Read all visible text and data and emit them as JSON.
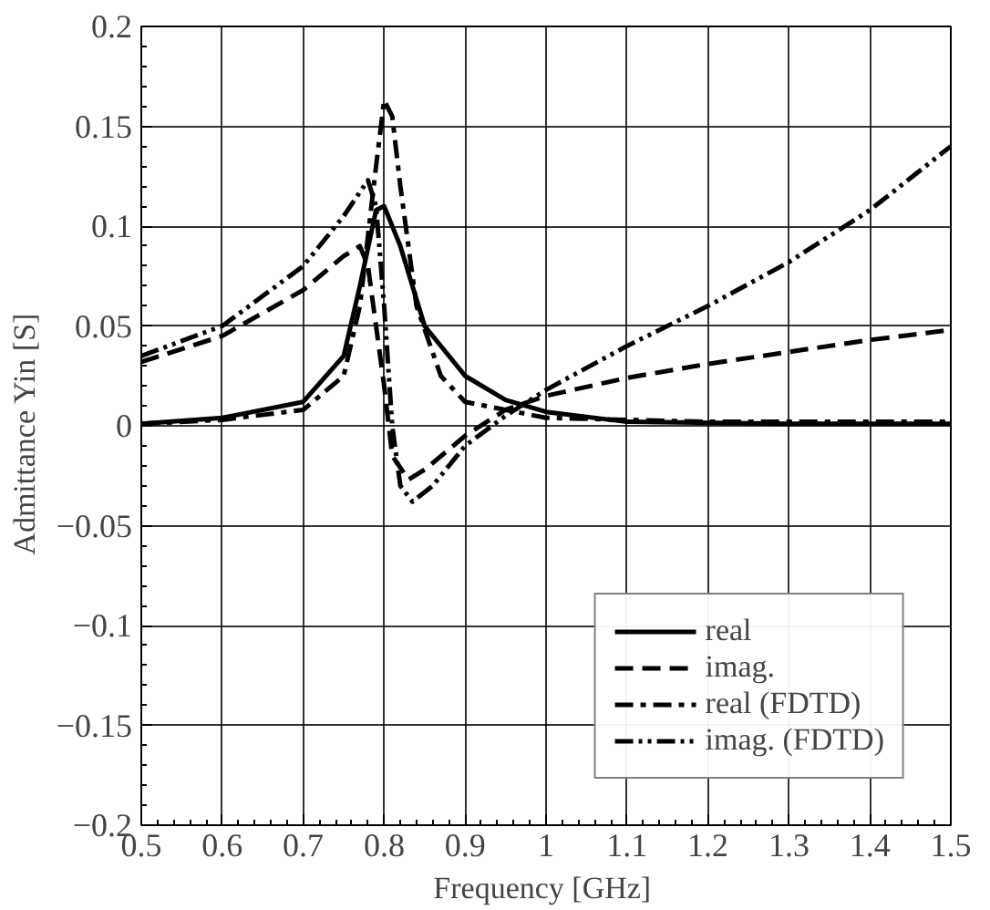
{
  "chart_data": {
    "type": "line",
    "xlabel": "Frequency  [GHz]",
    "ylabel": "Admittance  Yin  [S]",
    "xlim": [
      0.5,
      1.5
    ],
    "xticks": [
      0.5,
      0.6,
      0.7,
      0.8,
      0.9,
      1,
      1.1,
      1.2,
      1.3,
      1.4,
      1.5
    ],
    "ylim": [
      -0.2,
      0.2
    ],
    "yticks": [
      -0.2,
      -0.15,
      -0.1,
      -0.05,
      0,
      0.05,
      0.1,
      0.15,
      0.2
    ],
    "grid": true,
    "legend": "bottom right",
    "series": [
      {
        "name": "real",
        "color": "#000000",
        "line_style": "solid",
        "x": [
          0.5,
          0.6,
          0.7,
          0.75,
          0.77,
          0.79,
          0.8,
          0.82,
          0.85,
          0.9,
          0.95,
          1.0,
          1.1,
          1.3,
          1.5
        ],
        "values": [
          0.001,
          0.004,
          0.012,
          0.035,
          0.07,
          0.108,
          0.11,
          0.09,
          0.05,
          0.025,
          0.013,
          0.007,
          0.002,
          0.001,
          0.001
        ]
      },
      {
        "name": "imag.",
        "color": "#000000",
        "line_style": "dashed",
        "x": [
          0.5,
          0.6,
          0.7,
          0.75,
          0.77,
          0.78,
          0.8,
          0.81,
          0.83,
          0.85,
          0.9,
          0.95,
          1.0,
          1.1,
          1.2,
          1.3,
          1.4,
          1.5
        ],
        "values": [
          0.032,
          0.045,
          0.068,
          0.085,
          0.09,
          0.08,
          0.02,
          -0.015,
          -0.027,
          -0.022,
          -0.005,
          0.008,
          0.015,
          0.024,
          0.031,
          0.037,
          0.043,
          0.048
        ]
      },
      {
        "name": "real (FDTD)",
        "color": "#000000",
        "line_style": "dashdot",
        "x": [
          0.5,
          0.6,
          0.7,
          0.75,
          0.77,
          0.79,
          0.8,
          0.81,
          0.82,
          0.84,
          0.87,
          0.9,
          1.0,
          1.2,
          1.5
        ],
        "values": [
          0.001,
          0.003,
          0.008,
          0.025,
          0.06,
          0.13,
          0.163,
          0.155,
          0.12,
          0.06,
          0.025,
          0.012,
          0.004,
          0.002,
          0.002
        ]
      },
      {
        "name": "imag. (FDTD)",
        "color": "#000000",
        "line_style": "dashdotdot",
        "x": [
          0.5,
          0.6,
          0.7,
          0.75,
          0.78,
          0.79,
          0.8,
          0.81,
          0.82,
          0.835,
          0.86,
          0.9,
          0.95,
          1.0,
          1.1,
          1.2,
          1.3,
          1.4,
          1.5
        ],
        "values": [
          0.035,
          0.05,
          0.08,
          0.105,
          0.123,
          0.11,
          0.06,
          0.0,
          -0.03,
          -0.038,
          -0.03,
          -0.01,
          0.005,
          0.018,
          0.04,
          0.06,
          0.082,
          0.108,
          0.14
        ]
      }
    ]
  }
}
